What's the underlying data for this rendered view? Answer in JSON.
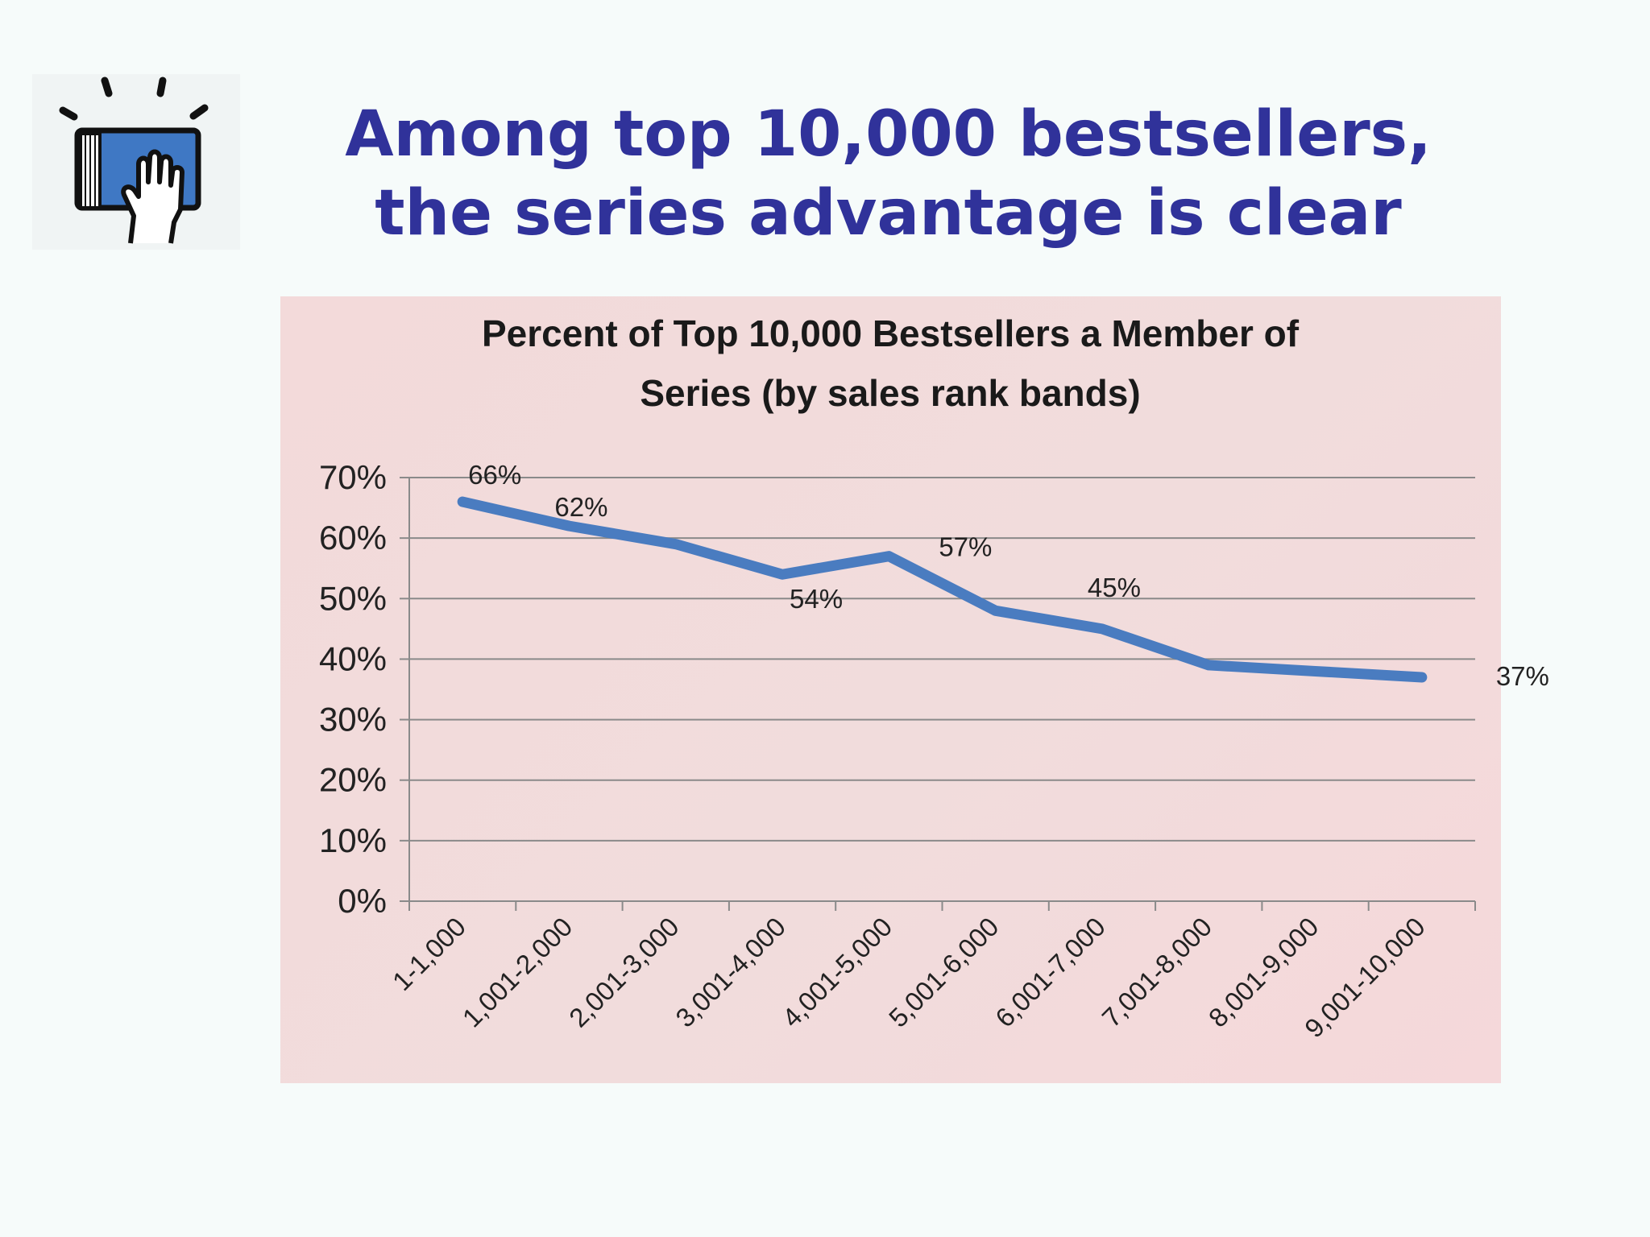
{
  "slide": {
    "title_line1": "Among top 10,000 bestsellers,",
    "title_line2": "the series advantage is clear",
    "logo_icon": "book-in-hand-icon",
    "title_color": "#30329a"
  },
  "chart_data": {
    "type": "line",
    "title_lines": [
      "Percent of Top 10,000 Bestsellers a Member of",
      "Series (by sales rank bands)"
    ],
    "categories": [
      "1-1,000",
      "1,001-2,000",
      "2,001-3,000",
      "3,001-4,000",
      "4,001-5,000",
      "5,001-6,000",
      "6,001-7,000",
      "7,001-8,000",
      "8,001-9,000",
      "9,001-10,000"
    ],
    "series": [
      {
        "values": [
          66,
          62,
          59,
          54,
          57,
          48,
          45,
          39,
          38,
          37
        ],
        "color": "#4a7cc0"
      }
    ],
    "data_labels": [
      {
        "index": 0,
        "text": "66%"
      },
      {
        "index": 1,
        "text": "62%"
      },
      {
        "index": 3,
        "text": "54%"
      },
      {
        "index": 4,
        "text": "57%"
      },
      {
        "index": 6,
        "text": "45%"
      },
      {
        "index": 9,
        "text": "37%"
      }
    ],
    "y_ticks": [
      "0%",
      "10%",
      "20%",
      "30%",
      "40%",
      "50%",
      "60%",
      "70%"
    ],
    "ylim": [
      0,
      70
    ],
    "grid": true,
    "background": "#f2dbdb"
  }
}
